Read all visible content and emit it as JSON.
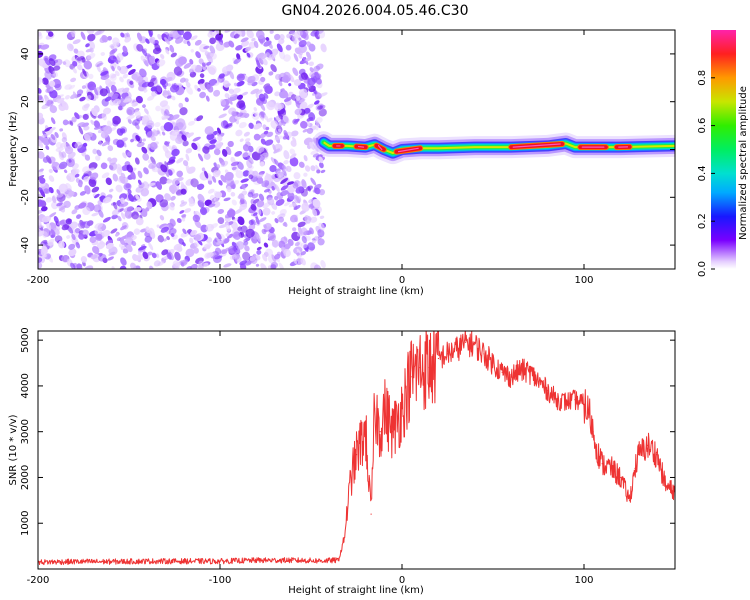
{
  "title": "GN04.2026.004.05.46.C30",
  "chart_data": [
    {
      "type": "heatmap",
      "name": "spectrogram",
      "xlabel": "Height of straight line (km)",
      "ylabel": "Frequency (Hz)",
      "xlim": [
        -200,
        150
      ],
      "ylim": [
        -50,
        50
      ],
      "xticks": [
        -200,
        -100,
        0,
        100
      ],
      "yticks": [
        -40,
        -20,
        0,
        20,
        40
      ],
      "colorbar": {
        "label": "Normalized spectral amplitude",
        "range": [
          0,
          1
        ],
        "ticks": [
          0.0,
          0.2,
          0.4,
          0.6,
          0.8
        ],
        "tick_labels": [
          "0.0",
          "0.2",
          "0.4",
          "0.6",
          "0.8"
        ]
      },
      "noise_region_x": [
        -200,
        -43
      ],
      "ridge": {
        "x": [
          -43,
          -40,
          -30,
          -20,
          -15,
          -10,
          -5,
          0,
          10,
          20,
          40,
          60,
          80,
          90,
          95,
          100,
          120,
          150
        ],
        "freq": [
          3,
          1.5,
          1.5,
          1,
          2,
          0,
          -1.5,
          0,
          0.5,
          0.5,
          1,
          1,
          1.5,
          2.5,
          1,
          1,
          1,
          1.5
        ],
        "peak_segments": [
          [
            -37,
            -33
          ],
          [
            -25,
            -20
          ],
          [
            -14,
            -10
          ],
          [
            -3,
            10
          ],
          [
            60,
            88
          ],
          [
            98,
            112
          ],
          [
            118,
            125
          ]
        ]
      }
    },
    {
      "type": "line",
      "name": "snr",
      "xlabel": "Height of straight line (km)",
      "ylabel": "SNR (10 * v/v)",
      "xlim": [
        -200,
        150
      ],
      "ylim": [
        0,
        5200
      ],
      "xticks": [
        -200,
        -100,
        0,
        100
      ],
      "yticks": [
        1000,
        2000,
        3000,
        4000,
        5000
      ],
      "color": "#ee3333",
      "series": [
        {
          "name": "SNR",
          "x": [
            -200,
            -180,
            -160,
            -140,
            -120,
            -100,
            -80,
            -60,
            -45,
            -35,
            -32,
            -28,
            -25,
            -20,
            -17,
            -15,
            -12,
            -10,
            -5,
            0,
            5,
            10,
            15,
            20,
            25,
            30,
            35,
            40,
            45,
            50,
            55,
            60,
            65,
            70,
            75,
            80,
            85,
            90,
            95,
            100,
            103,
            105,
            108,
            110,
            115,
            120,
            125,
            128,
            130,
            135,
            140,
            145,
            150
          ],
          "values": [
            150,
            160,
            160,
            170,
            170,
            170,
            190,
            190,
            180,
            190,
            600,
            2000,
            2500,
            3000,
            1200,
            3500,
            3000,
            3500,
            3000,
            3500,
            4200,
            4400,
            4400,
            4600,
            4700,
            4800,
            4950,
            4900,
            4700,
            4500,
            4300,
            4200,
            4350,
            4300,
            4100,
            3900,
            3700,
            3650,
            3700,
            3600,
            3400,
            3000,
            2500,
            2300,
            2200,
            2000,
            1500,
            2200,
            2500,
            2700,
            2500,
            1800,
            1700
          ]
        }
      ]
    }
  ]
}
